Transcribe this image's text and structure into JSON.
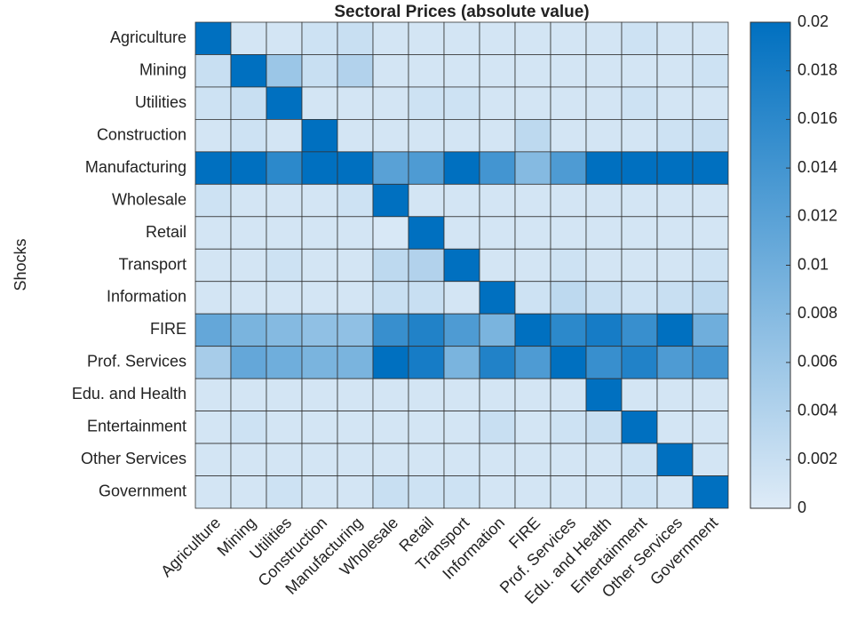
{
  "chart_data": {
    "type": "heatmap",
    "title": "Sectoral Prices (absolute value)",
    "y_label": "Shocks",
    "categories": [
      "Agriculture",
      "Mining",
      "Utilities",
      "Construction",
      "Manufacturing",
      "Wholesale",
      "Retail",
      "Transport",
      "Information",
      "FIRE",
      "Prof. Services",
      "Edu. and Health",
      "Entertainment",
      "Other Services",
      "Government"
    ],
    "values": [
      [
        0.02,
        0.001,
        0.001,
        0.0015,
        0.002,
        0.001,
        0.001,
        0.001,
        0.001,
        0.001,
        0.001,
        0.001,
        0.0015,
        0.001,
        0.001
      ],
      [
        0.002,
        0.02,
        0.006,
        0.002,
        0.004,
        0.001,
        0.001,
        0.001,
        0.001,
        0.001,
        0.001,
        0.001,
        0.001,
        0.001,
        0.0015
      ],
      [
        0.0015,
        0.002,
        0.02,
        0.001,
        0.001,
        0.001,
        0.0015,
        0.0015,
        0.001,
        0.001,
        0.001,
        0.001,
        0.0015,
        0.001,
        0.001
      ],
      [
        0.001,
        0.0015,
        0.001,
        0.02,
        0.001,
        0.001,
        0.001,
        0.001,
        0.001,
        0.003,
        0.001,
        0.001,
        0.001,
        0.0015,
        0.002
      ],
      [
        0.02,
        0.02,
        0.016,
        0.02,
        0.02,
        0.012,
        0.013,
        0.02,
        0.014,
        0.008,
        0.013,
        0.02,
        0.02,
        0.02,
        0.02
      ],
      [
        0.0015,
        0.001,
        0.001,
        0.001,
        0.0015,
        0.02,
        0.001,
        0.001,
        0.001,
        0.001,
        0.001,
        0.001,
        0.001,
        0.001,
        0.001
      ],
      [
        0.001,
        0.001,
        0.001,
        0.001,
        0.001,
        0.0005,
        0.02,
        0.001,
        0.001,
        0.001,
        0.001,
        0.001,
        0.001,
        0.001,
        0.001
      ],
      [
        0.001,
        0.001,
        0.0015,
        0.001,
        0.001,
        0.003,
        0.004,
        0.02,
        0.001,
        0.001,
        0.0015,
        0.001,
        0.001,
        0.001,
        0.0015
      ],
      [
        0.001,
        0.001,
        0.001,
        0.001,
        0.001,
        0.002,
        0.002,
        0.001,
        0.02,
        0.0015,
        0.003,
        0.002,
        0.0015,
        0.002,
        0.003
      ],
      [
        0.011,
        0.009,
        0.008,
        0.007,
        0.007,
        0.015,
        0.017,
        0.013,
        0.009,
        0.02,
        0.016,
        0.018,
        0.015,
        0.02,
        0.01
      ],
      [
        0.005,
        0.011,
        0.01,
        0.009,
        0.009,
        0.02,
        0.018,
        0.009,
        0.017,
        0.013,
        0.02,
        0.015,
        0.017,
        0.013,
        0.014
      ],
      [
        0.001,
        0.001,
        0.001,
        0.001,
        0.001,
        0.001,
        0.001,
        0.001,
        0.001,
        0.001,
        0.001,
        0.02,
        0.001,
        0.001,
        0.001
      ],
      [
        0.001,
        0.0015,
        0.001,
        0.001,
        0.001,
        0.001,
        0.001,
        0.001,
        0.002,
        0.001,
        0.0015,
        0.002,
        0.02,
        0.001,
        0.001
      ],
      [
        0.001,
        0.001,
        0.001,
        0.001,
        0.001,
        0.001,
        0.001,
        0.001,
        0.001,
        0.001,
        0.001,
        0.001,
        0.0015,
        0.02,
        0.001
      ],
      [
        0.001,
        0.001,
        0.0015,
        0.001,
        0.001,
        0.002,
        0.0015,
        0.0015,
        0.001,
        0.001,
        0.001,
        0.001,
        0.0015,
        0.001,
        0.02
      ]
    ],
    "colorscale": [
      "#deebf7",
      "#0070c0"
    ],
    "zlim": [
      0,
      0.02
    ],
    "zticks": [
      0,
      0.002,
      0.004,
      0.006,
      0.008,
      0.01,
      0.012,
      0.014,
      0.016,
      0.018,
      0.02
    ]
  }
}
